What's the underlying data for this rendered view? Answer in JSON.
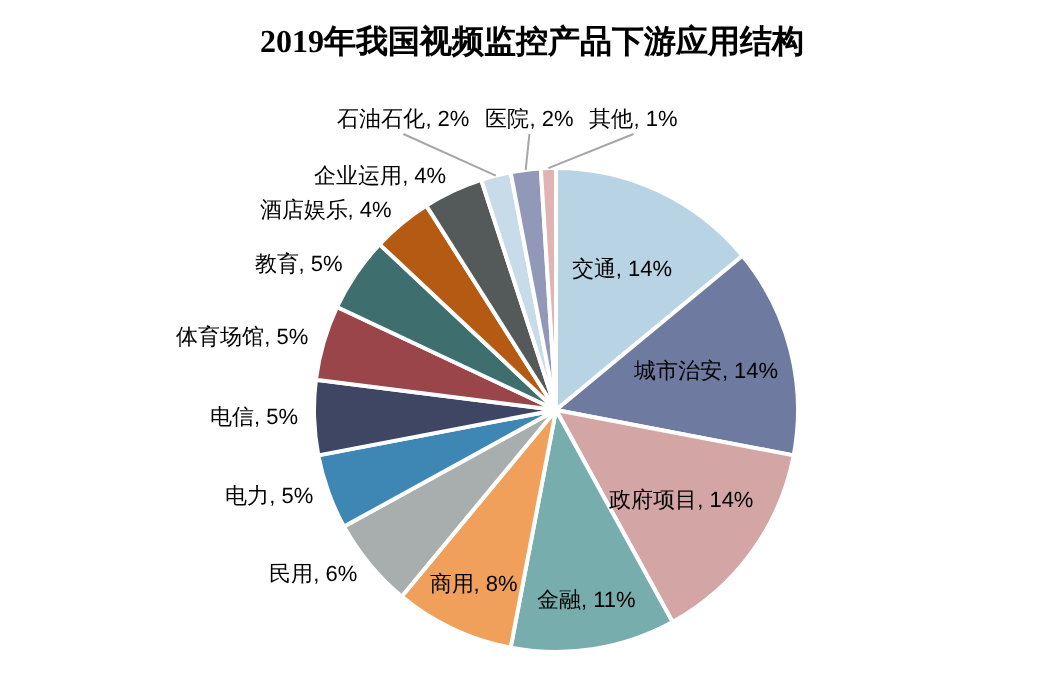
{
  "chart_data": {
    "type": "pie",
    "title": "2019年我国视频监控产品下游应用结构",
    "categories": [
      "交通",
      "城市治安",
      "政府项目",
      "金融",
      "商用",
      "民用",
      "电力",
      "电信",
      "体育场馆",
      "教育",
      "酒店娱乐",
      "企业运用",
      "石油石化",
      "医院",
      "其他"
    ],
    "values": [
      14,
      14,
      14,
      11,
      8,
      6,
      5,
      5,
      5,
      5,
      4,
      4,
      2,
      2,
      1
    ],
    "colors": [
      "#b7d3e4",
      "#6f7aa0",
      "#d4a5a5",
      "#78adad",
      "#f0a05a",
      "#a8adad",
      "#3e86b4",
      "#3f4663",
      "#9a4549",
      "#3e6e6e",
      "#b55a12",
      "#545959",
      "#c8dbe8",
      "#9298b8",
      "#e2b3b3"
    ],
    "value_labels": [
      ", 14%",
      ", 14%",
      ", 14%",
      ", 11%",
      ", 8%",
      ", 6%",
      ", 5%",
      ", 5%",
      ", 5%",
      ", 5%",
      ", 4%",
      ", 4%",
      ", 2%",
      ", 2%",
      ", 1%"
    ],
    "legend": false
  }
}
